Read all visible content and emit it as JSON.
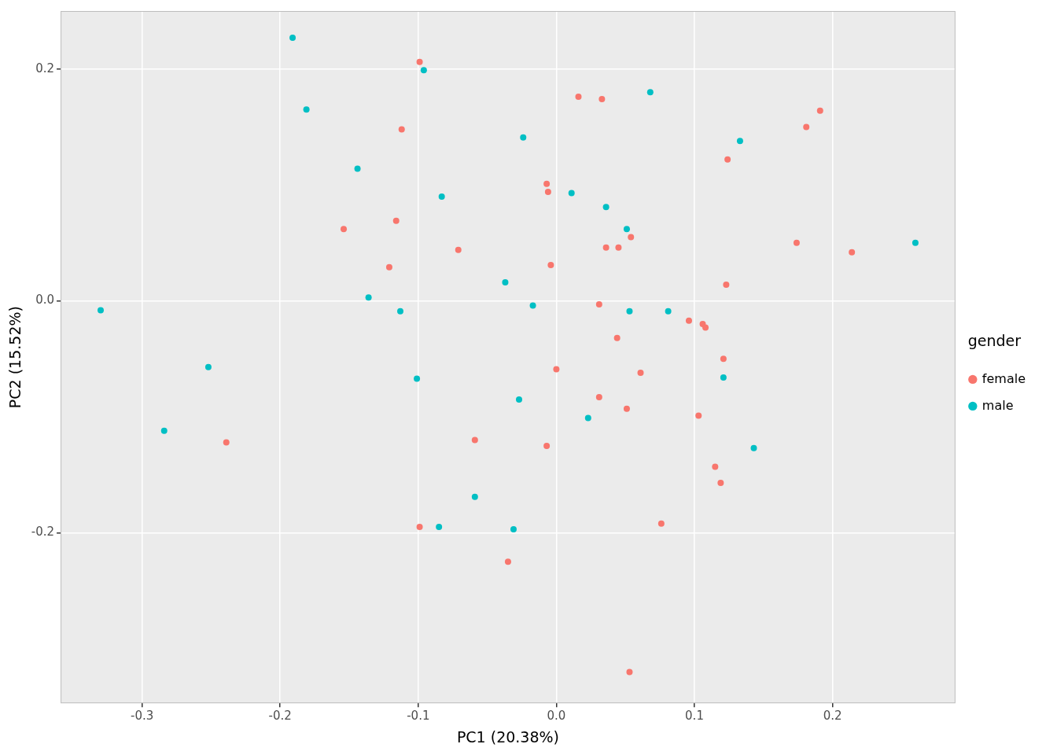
{
  "chart_data": {
    "type": "scatter",
    "x_label": "PC1 (20.38%)",
    "y_label": "PC2 (15.52%)",
    "legend_title": "gender",
    "legend": "right",
    "grid": true,
    "marker": "circle",
    "xlim": [
      -0.359,
      0.289
    ],
    "ylim": [
      -0.347,
      0.25
    ],
    "xticks": [
      -0.3,
      -0.2,
      -0.1,
      {
        "value": 0,
        "label": "0.0"
      },
      0.1,
      0.2
    ],
    "yticks": [
      -0.2,
      {
        "value": 0,
        "label": "0.0"
      },
      0.2
    ],
    "series": [
      {
        "name": "female",
        "color": "#F8766D",
        "x": [
          -0.099,
          0.016,
          0.033,
          0.191,
          0.181,
          -0.112,
          0.124,
          -0.007,
          -0.006,
          -0.116,
          -0.154,
          -0.071,
          0.174,
          0.214,
          0.054,
          0.036,
          0.045,
          -0.121,
          -0.004,
          0.123,
          0.031,
          0.096,
          0.106,
          0.108,
          0.044,
          0.121,
          0.0,
          0.061,
          0.031,
          0.051,
          0.103,
          -0.239,
          -0.059,
          -0.007,
          0.115,
          0.119,
          0.076,
          -0.099,
          -0.035,
          0.053
        ],
        "values": [
          0.206,
          0.176,
          0.174,
          0.164,
          0.15,
          0.148,
          0.122,
          0.101,
          0.094,
          0.069,
          0.062,
          0.044,
          0.05,
          0.042,
          0.055,
          0.046,
          0.046,
          0.029,
          0.031,
          0.014,
          -0.003,
          -0.017,
          -0.02,
          -0.023,
          -0.032,
          -0.05,
          -0.059,
          -0.062,
          -0.083,
          -0.093,
          -0.099,
          -0.122,
          -0.12,
          -0.125,
          -0.143,
          -0.157,
          -0.192,
          -0.195,
          -0.225,
          -0.32
        ]
      },
      {
        "name": "male",
        "color": "#00BFC4",
        "x": [
          -0.191,
          -0.096,
          -0.181,
          0.068,
          -0.024,
          0.133,
          -0.144,
          -0.083,
          0.011,
          0.036,
          0.051,
          0.26,
          -0.037,
          -0.136,
          -0.017,
          -0.33,
          -0.113,
          0.053,
          0.081,
          -0.252,
          -0.101,
          0.121,
          -0.027,
          0.023,
          -0.284,
          0.143,
          -0.059,
          -0.085,
          -0.031
        ],
        "values": [
          0.227,
          0.199,
          0.165,
          0.18,
          0.141,
          0.138,
          0.114,
          0.09,
          0.093,
          0.081,
          0.062,
          0.05,
          0.016,
          0.003,
          -0.004,
          -0.008,
          -0.009,
          -0.009,
          -0.009,
          -0.057,
          -0.067,
          -0.066,
          -0.085,
          -0.101,
          -0.112,
          -0.127,
          -0.169,
          -0.195,
          -0.197
        ]
      }
    ]
  }
}
